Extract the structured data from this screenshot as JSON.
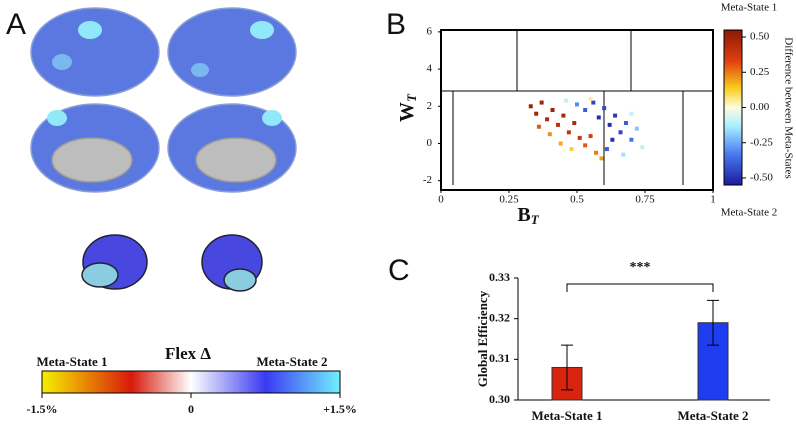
{
  "panel_labels": [
    "A",
    "B",
    "C"
  ],
  "flex_legend": {
    "title": "Flex Δ",
    "left_label": "Meta-State  1",
    "right_label": "Meta-State  2",
    "lim": [
      -1.5,
      1.5
    ],
    "ticks": [
      {
        "value": -1.5,
        "label": "-1.5%"
      },
      0,
      {
        "value": 1.5,
        "label": "+1.5%"
      }
    ]
  },
  "chart_data": [
    {
      "type": "scatter",
      "x_label": {
        "main": "B",
        "sub": "T"
      },
      "y_label": {
        "main": "W",
        "sub": "T"
      },
      "xlim": [
        0,
        1
      ],
      "xticks": [
        0,
        0.25,
        0.5,
        0.75,
        1
      ],
      "ylim": [
        -2.5,
        6.1
      ],
      "yticks": [
        -2,
        0,
        2,
        4,
        6
      ],
      "colorbar": {
        "label": "Difference between Meta-States",
        "top_label": "Meta-State 1",
        "bottom_label": "Meta-State 2",
        "lim": [
          -0.55,
          0.55
        ],
        "ticks": [
          {
            "value": 0.5,
            "label": "0.50"
          },
          0.25,
          {
            "value": 0,
            "label": "0.00"
          },
          -0.25,
          {
            "value": -0.5,
            "label": "-0.50"
          }
        ]
      },
      "x": [
        0.33,
        0.35,
        0.37,
        0.39,
        0.41,
        0.43,
        0.45,
        0.47,
        0.49,
        0.51,
        0.36,
        0.4,
        0.44,
        0.48,
        0.53,
        0.57,
        0.55,
        0.59,
        0.5,
        0.53,
        0.56,
        0.58,
        0.6,
        0.62,
        0.64,
        0.66,
        0.68,
        0.7,
        0.63,
        0.61,
        0.72,
        0.46,
        0.74,
        0.67,
        0.55,
        0.7
      ],
      "y": [
        2.0,
        1.6,
        2.2,
        1.3,
        1.8,
        1.0,
        1.5,
        0.6,
        1.1,
        0.3,
        0.9,
        0.5,
        0.0,
        -0.3,
        -0.1,
        -0.5,
        0.4,
        -0.8,
        2.1,
        1.8,
        2.2,
        1.4,
        1.9,
        1.0,
        1.5,
        0.6,
        1.1,
        0.2,
        0.2,
        -0.3,
        0.8,
        2.3,
        -0.2,
        -0.6,
        2.4,
        1.6
      ],
      "color_values": [
        0.5,
        0.48,
        0.5,
        0.45,
        0.5,
        0.42,
        0.47,
        0.4,
        0.45,
        0.38,
        0.3,
        0.22,
        0.18,
        0.12,
        0.3,
        0.25,
        0.35,
        0.2,
        -0.3,
        -0.4,
        -0.45,
        -0.5,
        -0.45,
        -0.5,
        -0.48,
        -0.45,
        -0.4,
        -0.35,
        -0.5,
        -0.4,
        -0.2,
        -0.1,
        -0.1,
        -0.15,
        0.05,
        -0.1
      ]
    },
    {
      "type": "bar",
      "y_label": "Global Efficiency",
      "categories": [
        "Meta-State 1",
        "Meta-State 2"
      ],
      "values": [
        0.308,
        0.319
      ],
      "errors": [
        0.0055,
        0.0055
      ],
      "colors": [
        "#d8230f",
        "#1f3cf0"
      ],
      "ylim": [
        0.3,
        0.33
      ],
      "yticks": [
        {
          "value": 0.3,
          "label": "0.30"
        },
        0.31,
        0.32,
        0.33
      ],
      "significance": "***"
    }
  ]
}
